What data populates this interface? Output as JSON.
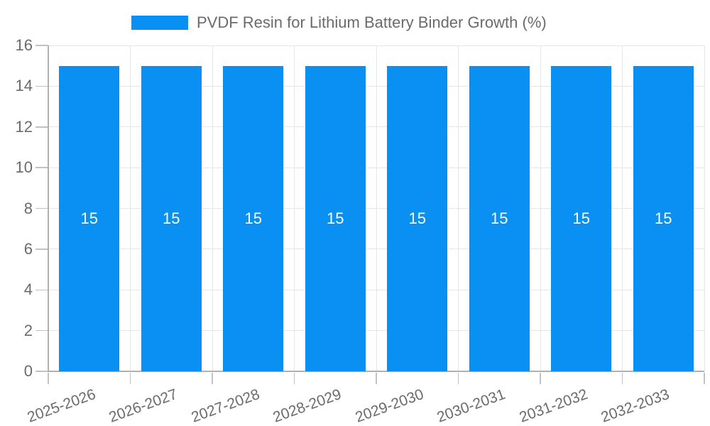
{
  "chart_data": {
    "type": "bar",
    "title": "",
    "legend_label": "PVDF Resin for Lithium Battery Binder Growth (%)",
    "legend_position": "top",
    "categories": [
      "2025-2026",
      "2026-2027",
      "2027-2028",
      "2028-2029",
      "2029-2030",
      "2030-2031",
      "2031-2032",
      "2032-2033"
    ],
    "values": [
      15,
      15,
      15,
      15,
      15,
      15,
      15,
      15
    ],
    "bar_value_labels": [
      "15",
      "15",
      "15",
      "15",
      "15",
      "15",
      "15",
      "15"
    ],
    "xlabel": "",
    "ylabel": "",
    "ylim": [
      0,
      16
    ],
    "yticks": [
      0,
      2,
      4,
      6,
      8,
      10,
      12,
      14,
      16
    ],
    "grid": true,
    "x_label_rotation_deg": -20,
    "colors": {
      "bar": "#0a8ff2",
      "bar_label_text": "#ffffff",
      "tick_text": "#6b6b6b",
      "legend_text": "#6b6b6b",
      "gridline": "#e6e6e6",
      "axis_line": "#b0b0b0",
      "tick_mark": "#c2c2c2",
      "background": "#ffffff"
    }
  }
}
